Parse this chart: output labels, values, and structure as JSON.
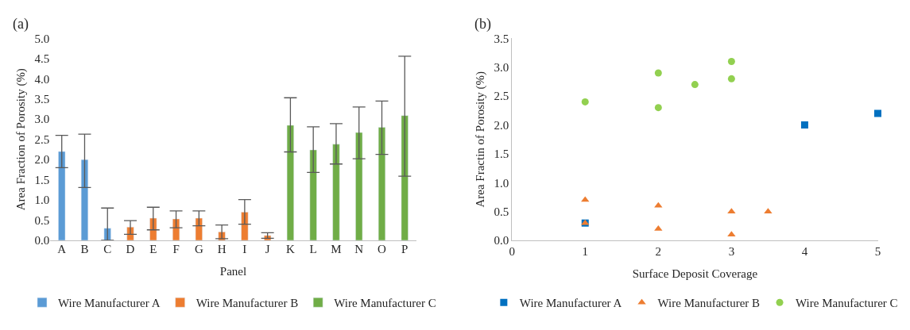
{
  "chart_data": [
    {
      "type": "bar",
      "title": "(a)",
      "xlabel": "Panel",
      "ylabel": "Area Fraction of Porosity (%)",
      "categories": [
        "A",
        "B",
        "C",
        "D",
        "E",
        "F",
        "G",
        "H",
        "I",
        "J",
        "K",
        "L",
        "M",
        "N",
        "O",
        "P"
      ],
      "ylim": [
        0,
        5
      ],
      "yticks": [
        {
          "value": 0,
          "label": "0.0"
        },
        {
          "value": 0.5,
          "label": "0.5"
        },
        {
          "value": 1,
          "label": "1.0"
        },
        {
          "value": 1.5,
          "label": "1.5"
        },
        {
          "value": 2,
          "label": "2.0"
        },
        {
          "value": 2.5,
          "label": "2.5"
        },
        {
          "value": 3,
          "label": "3.0"
        },
        {
          "value": 3.5,
          "label": "3.5"
        },
        {
          "value": 4,
          "label": "4.0"
        },
        {
          "value": 4.5,
          "label": "4.5"
        },
        {
          "value": 5,
          "label": "5.0"
        }
      ],
      "legend": "bottom",
      "series": [
        {
          "name": "Wire Manufacturer A",
          "color": "#5b9bd5",
          "values": [
            2.2,
            2.0,
            0.3,
            null,
            null,
            null,
            null,
            null,
            null,
            null,
            null,
            null,
            null,
            null,
            null,
            null
          ],
          "errors": [
            [
              1.8,
              2.6
            ],
            [
              1.31,
              2.63
            ],
            [
              0,
              0.8
            ],
            null,
            null,
            null,
            null,
            null,
            null,
            null,
            null,
            null,
            null,
            null,
            null,
            null
          ]
        },
        {
          "name": "Wire Manufacturer B",
          "color": "#ed7d31",
          "values": [
            null,
            null,
            null,
            0.33,
            0.55,
            0.53,
            0.55,
            0.21,
            0.7,
            0.12,
            null,
            null,
            null,
            null,
            null,
            null
          ],
          "errors": [
            null,
            null,
            null,
            [
              0.15,
              0.49
            ],
            [
              0.26,
              0.82
            ],
            [
              0.31,
              0.73
            ],
            [
              0.36,
              0.73
            ],
            [
              0.04,
              0.38
            ],
            [
              0.4,
              1.01
            ],
            [
              0.05,
              0.19
            ],
            null,
            null,
            null,
            null,
            null,
            null
          ]
        },
        {
          "name": "Wire Manufacturer C",
          "color": "#70ad47",
          "values": [
            null,
            null,
            null,
            null,
            null,
            null,
            null,
            null,
            null,
            null,
            2.85,
            2.24,
            2.38,
            2.67,
            2.8,
            3.09
          ],
          "errors": [
            null,
            null,
            null,
            null,
            null,
            null,
            null,
            null,
            null,
            null,
            [
              2.19,
              3.53
            ],
            [
              1.68,
              2.81
            ],
            [
              1.89,
              2.89
            ],
            [
              2.02,
              3.3
            ],
            [
              2.13,
              3.45
            ],
            [
              1.59,
              4.56
            ]
          ]
        }
      ]
    },
    {
      "type": "scatter",
      "title": "(b)",
      "xlabel": "Surface Deposit Coverage",
      "ylabel": "Area Fractin of Porosity (%)",
      "xlim": [
        0,
        5
      ],
      "xticks": [
        0,
        1,
        2,
        3,
        4,
        5
      ],
      "ylim": [
        0,
        3.5
      ],
      "yticks": [
        {
          "value": 0,
          "label": "0.0"
        },
        {
          "value": 0.5,
          "label": "0.5"
        },
        {
          "value": 1,
          "label": "1.0"
        },
        {
          "value": 1.5,
          "label": "1.5"
        },
        {
          "value": 2,
          "label": "2.0"
        },
        {
          "value": 2.5,
          "label": "2.5"
        },
        {
          "value": 3,
          "label": "3.0"
        },
        {
          "value": 3.5,
          "label": "3.5"
        }
      ],
      "legend": "bottom",
      "series": [
        {
          "name": "Wire Manufacturer A",
          "color": "#0070c0",
          "marker": "square",
          "x": [
            1,
            4,
            5
          ],
          "values": [
            0.3,
            2.0,
            2.2
          ]
        },
        {
          "name": "Wire Manufacturer B",
          "color": "#ed7d31",
          "marker": "triangle",
          "x": [
            1,
            1,
            2,
            2,
            3,
            3,
            3.5
          ],
          "values": [
            0.7,
            0.3,
            0.6,
            0.2,
            0.5,
            0.1,
            0.5
          ]
        },
        {
          "name": "Wire Manufacturer C",
          "color": "#92d050",
          "marker": "circle",
          "x": [
            1,
            2,
            2,
            2.5,
            3,
            3
          ],
          "values": [
            2.4,
            2.9,
            2.3,
            2.7,
            3.1,
            2.8
          ]
        }
      ]
    }
  ]
}
